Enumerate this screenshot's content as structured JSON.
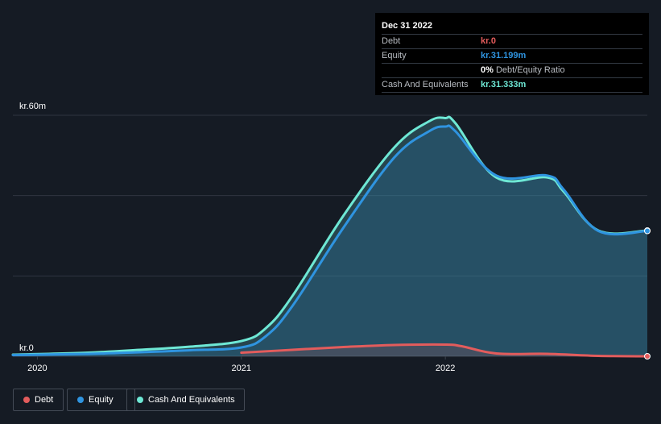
{
  "tooltip": {
    "date": "Dec 31 2022",
    "debt_label": "Debt",
    "debt_value": "kr.0",
    "equity_label": "Equity",
    "equity_value": "kr.31.199m",
    "ratio_pct": "0%",
    "ratio_label": "Debt/Equity Ratio",
    "cash_label": "Cash And Equivalents",
    "cash_value": "kr.31.333m"
  },
  "colors": {
    "debt": "#e35c5c",
    "equity": "#2f94e0",
    "cash": "#6ee8d5",
    "background": "#151b24",
    "grid": "#2f3540"
  },
  "legend": [
    {
      "name": "Debt",
      "color": "#e35c5c"
    },
    {
      "name": "Equity",
      "color": "#2f94e0"
    },
    {
      "name": "Cash And Equivalents",
      "color": "#6ee8d5"
    }
  ],
  "chart_data": {
    "type": "area",
    "title": "",
    "xlabel": "",
    "ylabel": "",
    "y_top_label": "kr.60m",
    "y_bottom_label": "kr.0",
    "ylim": [
      0,
      60
    ],
    "y_unit": "kr.m",
    "x_ticks": [
      {
        "label": "2020",
        "value": 2020.0
      },
      {
        "label": "2021",
        "value": 2021.0
      },
      {
        "label": "2022",
        "value": 2022.0
      }
    ],
    "xlim": [
      2019.88,
      2022.99
    ],
    "grid": true,
    "legend_position": "bottom-left",
    "series": [
      {
        "name": "Cash And Equivalents",
        "key": "cash",
        "points": [
          [
            2019.88,
            0.4
          ],
          [
            2020.25,
            0.9
          ],
          [
            2020.5,
            1.6
          ],
          [
            2020.75,
            2.4
          ],
          [
            2021.0,
            3.8
          ],
          [
            2021.12,
            7.0
          ],
          [
            2021.25,
            15.0
          ],
          [
            2021.5,
            35.0
          ],
          [
            2021.75,
            52.0
          ],
          [
            2021.92,
            58.5
          ],
          [
            2022.0,
            59.3
          ],
          [
            2022.05,
            58.0
          ],
          [
            2022.25,
            44.5
          ],
          [
            2022.5,
            44.5
          ],
          [
            2022.58,
            41.0
          ],
          [
            2022.75,
            31.3
          ],
          [
            2022.99,
            31.3
          ]
        ]
      },
      {
        "name": "Equity",
        "key": "equity",
        "points": [
          [
            2019.88,
            0.3
          ],
          [
            2020.25,
            0.6
          ],
          [
            2020.5,
            1.0
          ],
          [
            2020.75,
            1.5
          ],
          [
            2021.0,
            2.2
          ],
          [
            2021.12,
            5.0
          ],
          [
            2021.25,
            12.5
          ],
          [
            2021.5,
            32.0
          ],
          [
            2021.75,
            49.5
          ],
          [
            2021.92,
            56.0
          ],
          [
            2022.0,
            57.2
          ],
          [
            2022.05,
            56.0
          ],
          [
            2022.25,
            45.0
          ],
          [
            2022.5,
            45.0
          ],
          [
            2022.58,
            41.5
          ],
          [
            2022.75,
            31.2
          ],
          [
            2022.99,
            31.2
          ]
        ]
      },
      {
        "name": "Debt",
        "key": "debt",
        "points": [
          [
            2021.0,
            0.9
          ],
          [
            2021.25,
            1.6
          ],
          [
            2021.5,
            2.3
          ],
          [
            2021.75,
            2.8
          ],
          [
            2022.0,
            2.9
          ],
          [
            2022.08,
            2.5
          ],
          [
            2022.25,
            0.7
          ],
          [
            2022.5,
            0.6
          ],
          [
            2022.75,
            0.1
          ],
          [
            2022.99,
            0.0
          ]
        ]
      }
    ]
  }
}
